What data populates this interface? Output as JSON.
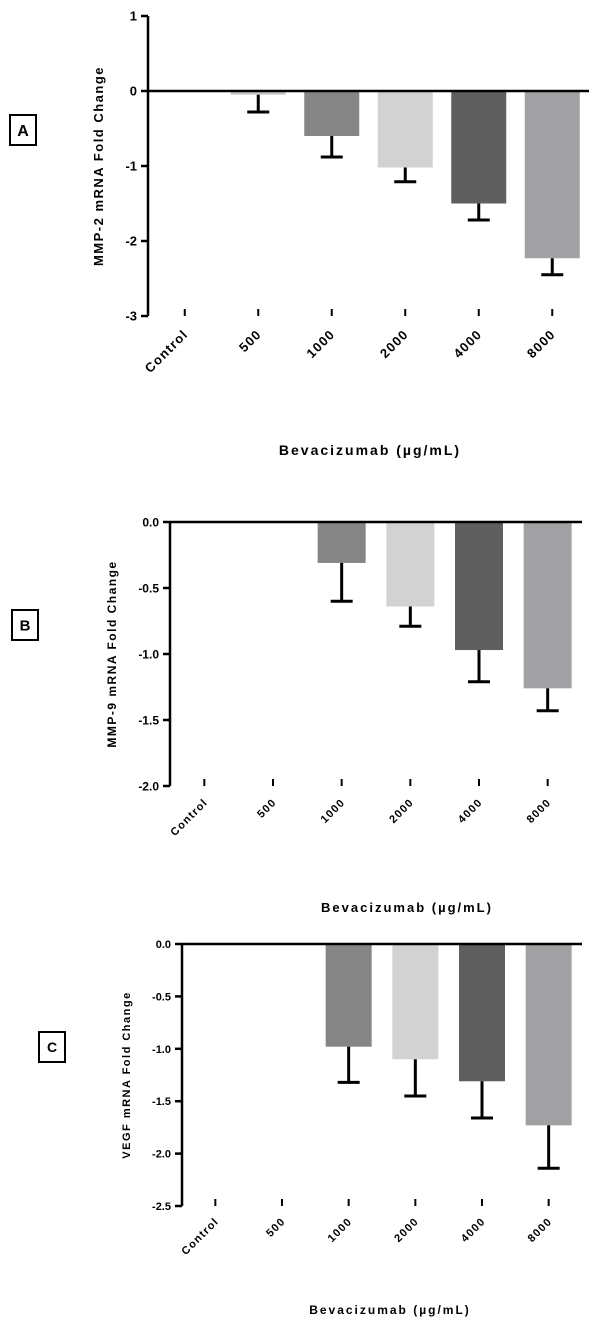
{
  "chart_data": [
    {
      "type": "bar",
      "panel_label": "A",
      "categories": [
        "Control",
        "500",
        "1000",
        "2000",
        "4000",
        "8000"
      ],
      "values": [
        0,
        -0.05,
        -0.6,
        -1.02,
        -1.5,
        -2.23
      ],
      "error_bars": [
        0,
        0.23,
        0.28,
        0.19,
        0.22,
        0.22
      ],
      "ylabel": "MMP-2 mRNA Fold Change",
      "xlabel": "Bevacizumab (µg/mL)",
      "ylim": [
        -3,
        1
      ],
      "yticks": [
        1,
        0,
        -1,
        -2,
        -3
      ],
      "ytick_labels": [
        "1",
        "0",
        "-1",
        "-2",
        "-3"
      ],
      "bar_colors": [
        "#ffffff",
        "#c8c8c8",
        "#858585",
        "#d2d2d2",
        "#5f5f5f",
        "#a1a1a4"
      ]
    },
    {
      "type": "bar",
      "panel_label": "B",
      "categories": [
        "Control",
        "500",
        "1000",
        "2000",
        "4000",
        "8000"
      ],
      "values": [
        0,
        0,
        -0.31,
        -0.64,
        -0.97,
        -1.26
      ],
      "error_bars": [
        0,
        0,
        0.29,
        0.15,
        0.24,
        0.17
      ],
      "ylabel": "MMP-9 mRNA Fold Change",
      "xlabel": "Bevacizumab (µg/mL)",
      "ylim": [
        -2,
        0
      ],
      "yticks": [
        0,
        -0.5,
        -1,
        -1.5,
        -2
      ],
      "ytick_labels": [
        "0.0",
        "-0.5",
        "-1.0",
        "-1.5",
        "-2.0"
      ],
      "bar_colors": [
        "#ffffff",
        "#c8c8c8",
        "#858585",
        "#d2d2d2",
        "#5f5f5f",
        "#a1a1a4"
      ]
    },
    {
      "type": "bar",
      "panel_label": "C",
      "categories": [
        "Control",
        "500",
        "1000",
        "2000",
        "4000",
        "8000"
      ],
      "values": [
        0,
        0,
        -0.98,
        -1.1,
        -1.31,
        -1.73
      ],
      "error_bars": [
        0,
        0,
        0.34,
        0.35,
        0.35,
        0.41
      ],
      "ylabel": "VEGF mRNA Fold Change",
      "xlabel": "Bevacizumab (µg/mL)",
      "ylim": [
        -2.5,
        0
      ],
      "yticks": [
        0,
        -0.5,
        -1,
        -1.5,
        -2,
        -2.5
      ],
      "ytick_labels": [
        "0.0",
        "-0.5",
        "-1.0",
        "-1.5",
        "-2.0",
        "-2.5"
      ],
      "bar_colors": [
        "#ffffff",
        "#c8c8c8",
        "#858585",
        "#d2d2d2",
        "#5f5f5f",
        "#a1a1a4"
      ]
    }
  ]
}
